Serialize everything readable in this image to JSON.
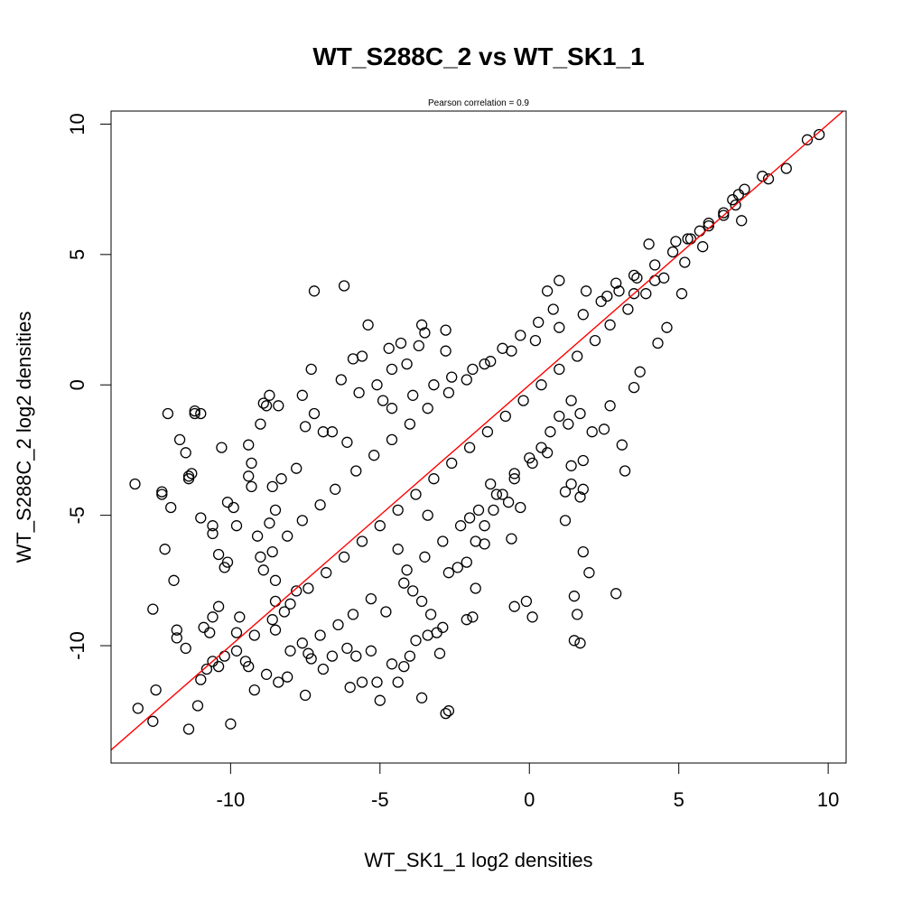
{
  "chart_data": {
    "type": "scatter",
    "title": "WT_S288C_2 vs WT_SK1_1",
    "subtitle": "Pearson correlation =  0.9",
    "xlabel": "WT_SK1_1 log2 densities",
    "ylabel": "WT_S288C_2 log2 densities",
    "xlim": [
      -14,
      10.6
    ],
    "ylim": [
      -14.5,
      10.5
    ],
    "x_ticks": [
      -10,
      -5,
      0,
      5,
      10
    ],
    "y_ticks": [
      -10,
      -5,
      0,
      5,
      10
    ],
    "x_tick_labels": [
      "-10",
      "-5",
      "0",
      "5",
      "10"
    ],
    "y_tick_labels": [
      "-10",
      "-5",
      "0",
      "5",
      "10"
    ],
    "grid": false,
    "marker": "open-circle",
    "marker_color": "#000000",
    "reference_line": {
      "slope": 1,
      "intercept": 0,
      "color": "#ff0000"
    },
    "points": [
      [
        9.7,
        9.6
      ],
      [
        9.3,
        9.4
      ],
      [
        8.6,
        8.3
      ],
      [
        8.0,
        7.9
      ],
      [
        7.8,
        8.0
      ],
      [
        7.2,
        7.5
      ],
      [
        7.0,
        7.3
      ],
      [
        6.8,
        7.1
      ],
      [
        7.1,
        6.3
      ],
      [
        6.5,
        6.5
      ],
      [
        6.0,
        6.2
      ],
      [
        5.7,
        5.9
      ],
      [
        5.3,
        5.6
      ],
      [
        4.9,
        5.5
      ],
      [
        4.0,
        5.4
      ],
      [
        4.2,
        4.0
      ],
      [
        3.5,
        4.2
      ],
      [
        2.9,
        3.9
      ],
      [
        2.6,
        3.4
      ],
      [
        1.9,
        3.6
      ],
      [
        1.0,
        4.0
      ],
      [
        0.6,
        3.6
      ],
      [
        4.6,
        2.2
      ],
      [
        3.5,
        3.5
      ],
      [
        5.1,
        3.5
      ],
      [
        -7.2,
        3.6
      ],
      [
        -6.2,
        3.8
      ],
      [
        -5.4,
        2.3
      ],
      [
        -3.6,
        2.3
      ],
      [
        -3.5,
        2.0
      ],
      [
        -2.8,
        2.1
      ],
      [
        -3.7,
        1.5
      ],
      [
        -2.8,
        1.3
      ],
      [
        -4.7,
        1.4
      ],
      [
        -5.9,
        1.0
      ],
      [
        -5.6,
        1.1
      ],
      [
        -4.3,
        1.6
      ],
      [
        -4.6,
        0.6
      ],
      [
        -4.1,
        0.8
      ],
      [
        -7.3,
        0.6
      ],
      [
        -6.3,
        0.2
      ],
      [
        -12.1,
        -1.1
      ],
      [
        -11.0,
        -1.1
      ],
      [
        -11.2,
        -1.0
      ],
      [
        -11.2,
        -1.1
      ],
      [
        -10.3,
        -2.4
      ],
      [
        -11.7,
        -2.1
      ],
      [
        -11.5,
        -2.6
      ],
      [
        -11.3,
        -3.4
      ],
      [
        -11.4,
        -3.5
      ],
      [
        -11.4,
        -3.6
      ],
      [
        -13.2,
        -3.8
      ],
      [
        -12.3,
        -4.1
      ],
      [
        -12.3,
        -4.2
      ],
      [
        -12.0,
        -4.7
      ],
      [
        -11.0,
        -5.1
      ],
      [
        -12.2,
        -6.3
      ],
      [
        -11.9,
        -7.5
      ],
      [
        -12.6,
        -8.6
      ],
      [
        -11.8,
        -9.4
      ],
      [
        -11.8,
        -9.7
      ],
      [
        -11.5,
        -10.1
      ],
      [
        -11.0,
        -11.3
      ],
      [
        -12.5,
        -11.7
      ],
      [
        -11.1,
        -12.3
      ],
      [
        -13.1,
        -12.4
      ],
      [
        -12.6,
        -12.9
      ],
      [
        -11.4,
        -13.2
      ],
      [
        -10.0,
        -13.0
      ],
      [
        -10.6,
        -10.6
      ],
      [
        -10.8,
        -10.9
      ],
      [
        -10.2,
        -10.4
      ],
      [
        -9.5,
        -10.6
      ],
      [
        -9.4,
        -10.8
      ],
      [
        -8.8,
        -11.1
      ],
      [
        -9.2,
        -11.7
      ],
      [
        -8.4,
        -11.4
      ],
      [
        -8.1,
        -11.2
      ],
      [
        -7.5,
        -11.9
      ],
      [
        -6.0,
        -11.6
      ],
      [
        -5.6,
        -11.4
      ],
      [
        -5.1,
        -11.4
      ],
      [
        -5.0,
        -12.1
      ],
      [
        -3.6,
        -12.0
      ],
      [
        -4.4,
        -11.4
      ],
      [
        -2.8,
        -12.6
      ],
      [
        -2.7,
        -12.5
      ],
      [
        -3.0,
        -10.3
      ],
      [
        -2.1,
        -9.0
      ],
      [
        -1.8,
        -7.8
      ],
      [
        -1.9,
        -8.9
      ],
      [
        -0.5,
        -8.5
      ],
      [
        -0.1,
        -8.3
      ],
      [
        0.1,
        -8.9
      ],
      [
        1.5,
        -9.8
      ],
      [
        1.7,
        -9.9
      ],
      [
        1.6,
        -8.8
      ],
      [
        1.5,
        -8.1
      ],
      [
        2.0,
        -7.2
      ],
      [
        2.9,
        -8.0
      ],
      [
        1.8,
        -6.4
      ],
      [
        1.2,
        -5.2
      ],
      [
        1.7,
        -4.3
      ],
      [
        1.8,
        -4.0
      ],
      [
        1.4,
        -3.8
      ],
      [
        1.2,
        -4.1
      ],
      [
        1.4,
        -3.1
      ],
      [
        1.8,
        -2.9
      ],
      [
        3.2,
        -3.3
      ],
      [
        3.1,
        -2.3
      ],
      [
        2.1,
        -1.8
      ],
      [
        1.3,
        -1.5
      ],
      [
        1.7,
        -1.1
      ],
      [
        2.5,
        -1.7
      ],
      [
        2.7,
        -0.8
      ],
      [
        3.5,
        -0.1
      ],
      [
        3.7,
        0.5
      ],
      [
        4.3,
        1.6
      ],
      [
        -1.3,
        -3.8
      ],
      [
        -1.5,
        -6.1
      ],
      [
        -0.6,
        -5.9
      ],
      [
        -0.3,
        -4.7
      ],
      [
        -0.7,
        -4.5
      ],
      [
        -2.0,
        -5.1
      ],
      [
        -3.4,
        -5.0
      ],
      [
        -4.4,
        -6.3
      ],
      [
        -8.5,
        -9.4
      ],
      [
        -9.8,
        -9.5
      ],
      [
        -10.4,
        -8.5
      ],
      [
        -10.6,
        -8.9
      ],
      [
        -10.7,
        -9.5
      ],
      [
        -10.9,
        -9.3
      ],
      [
        -10.2,
        -7.0
      ],
      [
        -10.1,
        -6.8
      ],
      [
        -10.4,
        -6.5
      ],
      [
        -10.6,
        -5.4
      ],
      [
        -10.6,
        -5.7
      ],
      [
        -9.8,
        -5.4
      ],
      [
        -9.9,
        -4.7
      ],
      [
        -10.1,
        -4.5
      ],
      [
        -9.3,
        -3.9
      ],
      [
        -9.4,
        -3.5
      ],
      [
        -9.3,
        -3.0
      ],
      [
        -9.4,
        -2.3
      ],
      [
        -9.0,
        -1.5
      ],
      [
        -8.8,
        -0.8
      ],
      [
        -8.4,
        -0.8
      ],
      [
        -8.9,
        -0.7
      ],
      [
        -8.7,
        -0.4
      ],
      [
        -7.6,
        -0.4
      ],
      [
        -7.2,
        -1.1
      ],
      [
        -7.5,
        -1.6
      ],
      [
        -6.9,
        -1.8
      ],
      [
        -6.6,
        -1.8
      ],
      [
        -6.1,
        -2.2
      ],
      [
        -7.8,
        -3.2
      ],
      [
        -8.3,
        -3.6
      ],
      [
        -8.6,
        -3.9
      ],
      [
        -8.5,
        -4.8
      ],
      [
        -8.7,
        -5.3
      ],
      [
        -9.1,
        -5.8
      ],
      [
        -9.0,
        -6.6
      ],
      [
        -8.9,
        -7.1
      ],
      [
        -8.5,
        -7.5
      ],
      [
        -8.5,
        -8.3
      ],
      [
        -9.7,
        -8.9
      ],
      [
        -8.0,
        -10.2
      ],
      [
        -7.4,
        -10.3
      ],
      [
        -7.3,
        -10.5
      ],
      [
        -6.9,
        -10.9
      ],
      [
        -6.6,
        -10.4
      ],
      [
        -6.1,
        -10.1
      ],
      [
        -5.8,
        -10.4
      ],
      [
        -5.3,
        -10.2
      ],
      [
        -4.6,
        -10.7
      ],
      [
        -4.2,
        -10.8
      ],
      [
        -4.0,
        -10.4
      ],
      [
        -3.8,
        -9.8
      ],
      [
        -3.4,
        -9.6
      ],
      [
        -3.1,
        -9.5
      ],
      [
        -2.9,
        -9.3
      ],
      [
        -3.3,
        -8.8
      ],
      [
        -3.6,
        -8.3
      ],
      [
        -3.9,
        -7.9
      ],
      [
        -4.2,
        -7.6
      ],
      [
        -2.7,
        -7.2
      ],
      [
        -2.4,
        -7.0
      ],
      [
        -2.1,
        -6.8
      ],
      [
        -1.8,
        -6.0
      ],
      [
        -1.5,
        -5.4
      ],
      [
        -1.2,
        -4.8
      ],
      [
        -0.9,
        -4.2
      ],
      [
        -0.5,
        -3.4
      ],
      [
        0.0,
        -2.8
      ],
      [
        0.4,
        -2.4
      ],
      [
        0.7,
        -1.8
      ],
      [
        1.0,
        -1.2
      ],
      [
        1.4,
        -0.6
      ],
      [
        -5.7,
        -0.3
      ],
      [
        -4.9,
        -0.6
      ],
      [
        -4.6,
        -0.9
      ],
      [
        -5.1,
        0.0
      ],
      [
        -3.9,
        -0.4
      ],
      [
        -3.2,
        0.0
      ],
      [
        -2.6,
        0.3
      ],
      [
        -1.9,
        0.6
      ],
      [
        -1.3,
        0.9
      ],
      [
        -0.6,
        1.3
      ],
      [
        0.2,
        1.7
      ],
      [
        1.0,
        2.2
      ],
      [
        1.8,
        2.7
      ],
      [
        2.4,
        3.2
      ],
      [
        3.0,
        3.6
      ],
      [
        3.6,
        4.1
      ],
      [
        4.2,
        4.6
      ],
      [
        4.8,
        5.1
      ],
      [
        5.4,
        5.6
      ],
      [
        6.0,
        6.1
      ],
      [
        6.5,
        6.6
      ],
      [
        6.9,
        6.9
      ],
      [
        5.8,
        5.3
      ],
      [
        5.2,
        4.7
      ],
      [
        4.5,
        4.1
      ],
      [
        3.9,
        3.5
      ],
      [
        3.3,
        2.9
      ],
      [
        2.7,
        2.3
      ],
      [
        2.2,
        1.7
      ],
      [
        1.6,
        1.1
      ],
      [
        1.0,
        0.6
      ],
      [
        0.4,
        0.0
      ],
      [
        -0.2,
        -0.6
      ],
      [
        -0.8,
        -1.2
      ],
      [
        -1.4,
        -1.8
      ],
      [
        -2.0,
        -2.4
      ],
      [
        -2.6,
        -3.0
      ],
      [
        -3.2,
        -3.6
      ],
      [
        -3.8,
        -4.2
      ],
      [
        -4.4,
        -4.8
      ],
      [
        -5.0,
        -5.4
      ],
      [
        -5.6,
        -6.0
      ],
      [
        -6.2,
        -6.6
      ],
      [
        -6.8,
        -7.2
      ],
      [
        -7.4,
        -7.8
      ],
      [
        -8.0,
        -8.4
      ],
      [
        -8.6,
        -9.0
      ],
      [
        -9.2,
        -9.6
      ],
      [
        -9.8,
        -10.2
      ],
      [
        -10.4,
        -10.8
      ],
      [
        -6.5,
        -4.0
      ],
      [
        -7.0,
        -4.6
      ],
      [
        -7.6,
        -5.2
      ],
      [
        -8.1,
        -5.8
      ],
      [
        -8.6,
        -6.4
      ],
      [
        -5.8,
        -3.3
      ],
      [
        -5.2,
        -2.7
      ],
      [
        -4.6,
        -2.1
      ],
      [
        -4.0,
        -1.5
      ],
      [
        -3.4,
        -0.9
      ],
      [
        -2.7,
        -0.3
      ],
      [
        -2.1,
        0.2
      ],
      [
        -1.5,
        0.8
      ],
      [
        -0.9,
        1.4
      ],
      [
        -0.3,
        1.9
      ],
      [
        0.3,
        2.4
      ],
      [
        0.8,
        2.9
      ],
      [
        -4.1,
        -7.1
      ],
      [
        -3.5,
        -6.6
      ],
      [
        -2.9,
        -6.0
      ],
      [
        -2.3,
        -5.4
      ],
      [
        -1.7,
        -4.8
      ],
      [
        -1.1,
        -4.2
      ],
      [
        -0.5,
        -3.6
      ],
      [
        0.1,
        -3.0
      ],
      [
        0.6,
        -2.6
      ],
      [
        -5.3,
        -8.2
      ],
      [
        -4.8,
        -8.7
      ],
      [
        -5.9,
        -8.8
      ],
      [
        -6.4,
        -9.2
      ],
      [
        -7.0,
        -9.6
      ],
      [
        -7.6,
        -9.9
      ],
      [
        -8.2,
        -8.7
      ],
      [
        -7.8,
        -7.9
      ]
    ]
  }
}
